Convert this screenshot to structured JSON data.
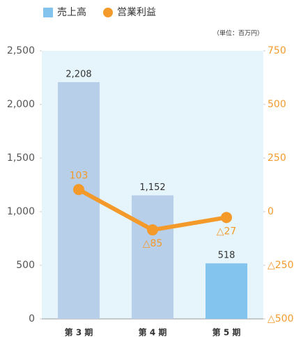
{
  "chart_data": {
    "type": "bar",
    "unit_note": "（単位：百万円）",
    "categories": [
      "第 3 期",
      "第 4 期",
      "第 5 期"
    ],
    "series": [
      {
        "name": "売上高",
        "type": "bar",
        "color": "#82c4ee",
        "colors": [
          "#b8cfe9",
          "#b8cfe9",
          "#82c4ee"
        ],
        "values": [
          2208,
          1152,
          518
        ],
        "value_labels": [
          "2,208",
          "1,152",
          "518"
        ]
      },
      {
        "name": "営業利益",
        "type": "line",
        "axis": "y2",
        "color": "#f39a2b",
        "values": [
          103,
          -85,
          -27
        ],
        "value_labels": [
          "103",
          "△85",
          "△27"
        ]
      }
    ],
    "ylim": [
      0,
      2500
    ],
    "yticks": [
      0,
      500,
      {
        "value": 1000,
        "label": "1,000"
      },
      {
        "value": 1500,
        "label": "1,500"
      },
      {
        "value": 2000,
        "label": "2,000"
      },
      {
        "value": 2500,
        "label": "2,500"
      }
    ],
    "y2lim": [
      -500,
      750
    ],
    "y2ticks": [
      {
        "value": -500,
        "label": "△500"
      },
      {
        "value": -250,
        "label": "△250"
      },
      0,
      250,
      500,
      750
    ],
    "plot_background": "#e6f4fb",
    "legend": "top-left"
  }
}
